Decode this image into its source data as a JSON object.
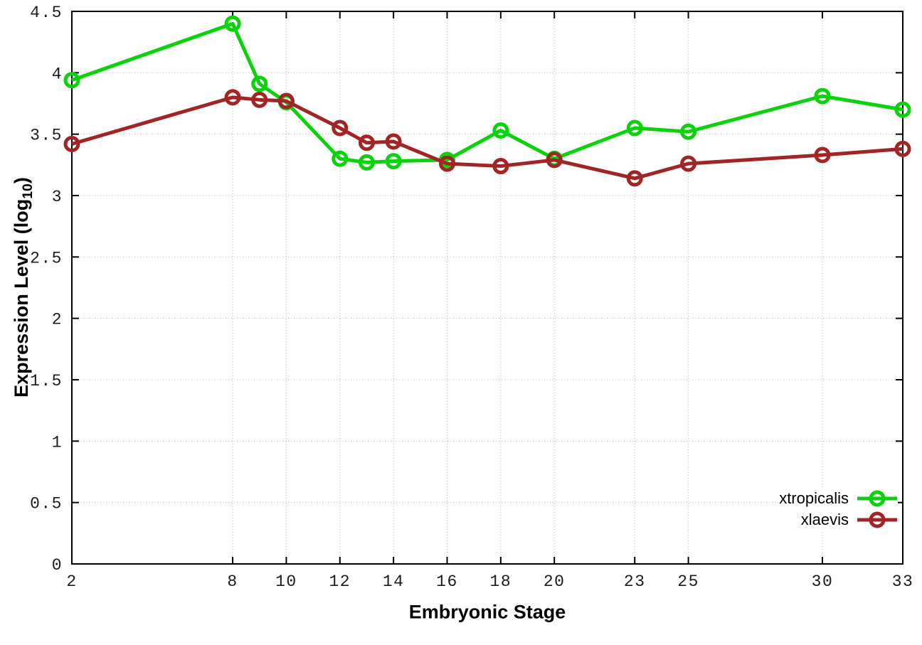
{
  "chart_data": {
    "type": "line",
    "title": "",
    "xlabel": "Embryonic Stage",
    "ylabel": "Expression Level (log10)",
    "ylabel_parts": {
      "pre": "Expression Level (log",
      "sub": "10",
      "post": ")"
    },
    "xlim": [
      2,
      33
    ],
    "ylim": [
      0,
      4.5
    ],
    "x_ticks": [
      2,
      8,
      10,
      12,
      14,
      16,
      18,
      20,
      23,
      25,
      30,
      33
    ],
    "y_ticks": [
      0,
      0.5,
      1,
      1.5,
      2,
      2.5,
      3,
      3.5,
      4,
      4.5
    ],
    "y_tick_labels": [
      "0",
      "0.5",
      "1",
      "1.5",
      "2",
      "2.5",
      "3",
      "3.5",
      "4",
      "4.5"
    ],
    "grid": true,
    "legend_position": "inside-bottom-right",
    "x": [
      2,
      8,
      9,
      10,
      12,
      13,
      14,
      16,
      18,
      20,
      23,
      25,
      30,
      33
    ],
    "series": [
      {
        "name": "xtropicalis",
        "color": "#0bd30b",
        "values": [
          3.94,
          4.4,
          3.91,
          3.76,
          3.3,
          3.27,
          3.28,
          3.29,
          3.53,
          3.3,
          3.55,
          3.52,
          3.81,
          3.7
        ]
      },
      {
        "name": "xlaevis",
        "color": "#a32424",
        "values": [
          3.42,
          3.8,
          3.78,
          3.77,
          3.55,
          3.43,
          3.44,
          3.26,
          3.24,
          3.29,
          3.14,
          3.26,
          3.33,
          3.38
        ]
      }
    ],
    "style": {
      "border_color": "#000000",
      "grid_color": "#b8b8b8",
      "tick_label_color": "#1c1c1c",
      "line_width": 5,
      "marker_radius": 9,
      "marker_stroke": 5
    }
  }
}
